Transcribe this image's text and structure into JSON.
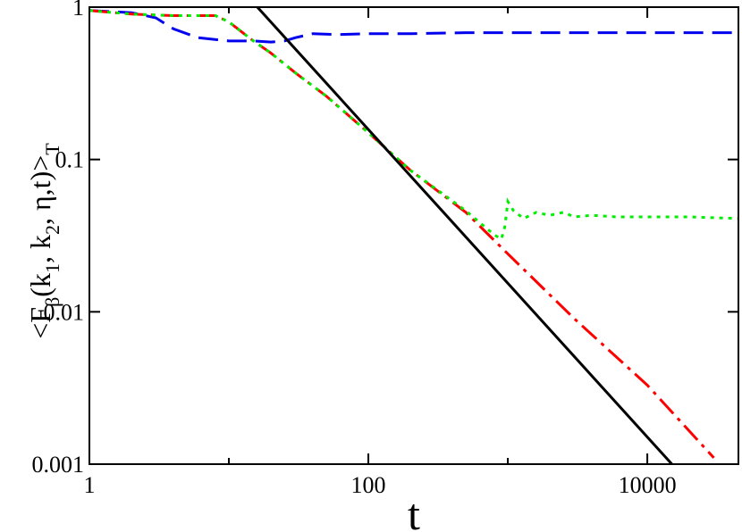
{
  "chart_data": {
    "type": "line",
    "title": "",
    "xlabel": "t",
    "ylabel_parts": {
      "open": "<F",
      "beta": "β",
      "mid1": "(k",
      "one": "1",
      "mid2": ", k",
      "two": "2",
      "tail": ", η,t)>",
      "T": "T"
    },
    "xscale": "log",
    "yscale": "log",
    "xlim": [
      1,
      45000
    ],
    "ylim": [
      0.001,
      1
    ],
    "x_ticks": [
      {
        "value": 1,
        "label": "1"
      },
      {
        "value": 100,
        "label": "100"
      },
      {
        "value": 10000,
        "label": "10000"
      }
    ],
    "y_ticks": [
      {
        "value": 1,
        "label": "1"
      },
      {
        "value": 0.1,
        "label": "0.1"
      },
      {
        "value": 0.01,
        "label": "0.01"
      },
      {
        "value": 0.001,
        "label": "0.001"
      }
    ],
    "grid": false,
    "legend": "none",
    "series": [
      {
        "color": "#0000ee",
        "dash": "22,10",
        "x": [
          1,
          2,
          3,
          4,
          6,
          10,
          15,
          20,
          25,
          30,
          40,
          60,
          100,
          200,
          500,
          1000,
          5000,
          10000,
          45000
        ],
        "y": [
          0.95,
          0.92,
          0.85,
          0.72,
          0.63,
          0.6,
          0.6,
          0.59,
          0.6,
          0.63,
          0.67,
          0.66,
          0.67,
          0.67,
          0.68,
          0.68,
          0.68,
          0.68,
          0.68
        ]
      },
      {
        "color": "#ff0000",
        "dash": "22,7,4,7",
        "x": [
          1,
          2,
          4,
          6,
          8,
          10,
          15,
          20,
          30,
          50,
          100,
          200,
          500,
          1000,
          3000,
          10000,
          30000
        ],
        "y": [
          0.95,
          0.9,
          0.88,
          0.88,
          0.88,
          0.8,
          0.6,
          0.5,
          0.37,
          0.26,
          0.15,
          0.085,
          0.045,
          0.024,
          0.009,
          0.0033,
          0.0011
        ]
      },
      {
        "color": "#00ee00",
        "dash": "4,6",
        "x": [
          1,
          2,
          4,
          6,
          8,
          10,
          15,
          20,
          30,
          50,
          100,
          200,
          500,
          800,
          900,
          950,
          1000,
          1100,
          1300,
          1600,
          2000,
          2500,
          3000,
          4000,
          6000,
          10000,
          20000,
          45000
        ],
        "y": [
          0.95,
          0.9,
          0.88,
          0.88,
          0.88,
          0.8,
          0.6,
          0.5,
          0.37,
          0.26,
          0.15,
          0.085,
          0.046,
          0.032,
          0.03,
          0.036,
          0.053,
          0.046,
          0.041,
          0.045,
          0.043,
          0.045,
          0.042,
          0.043,
          0.042,
          0.042,
          0.042,
          0.041
        ]
      },
      {
        "color": "#000000",
        "dash": "",
        "x": [
          16,
          15000
        ],
        "y": [
          1,
          0.001
        ]
      }
    ]
  }
}
